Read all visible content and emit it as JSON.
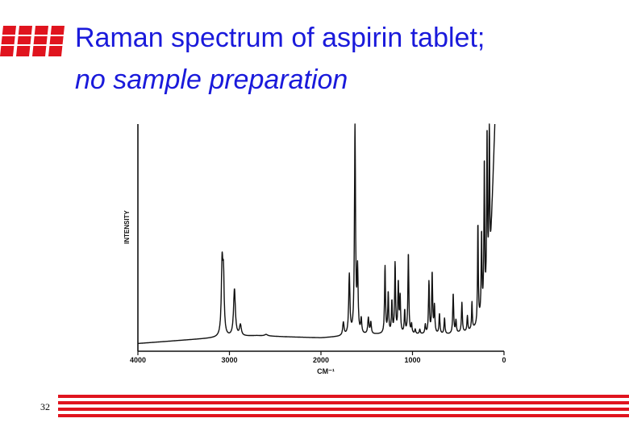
{
  "slide": {
    "title_line1": "Raman spectrum of aspirin tablet;",
    "title_line2": "no sample preparation",
    "page_number": "32",
    "accent_color": "#e0141e",
    "title_color": "#1a1adb"
  },
  "chart_data": {
    "type": "line",
    "title": "",
    "xlabel": "CM⁻¹",
    "ylabel": "INTENSITY",
    "xlim": [
      4000,
      0
    ],
    "ylim": [
      0,
      100
    ],
    "x_ticks": [
      {
        "value": 4000,
        "label": "4000"
      },
      {
        "value": 3000,
        "label": "3000"
      },
      {
        "value": 2000,
        "label": "2000"
      },
      {
        "value": 1000,
        "label": "1000"
      },
      {
        "value": 0,
        "label": "0"
      }
    ],
    "grid": false,
    "baseline": [
      [
        4000,
        2
      ],
      [
        3500,
        3.5
      ],
      [
        3150,
        4.5
      ],
      [
        2700,
        5.5
      ],
      [
        2400,
        5
      ],
      [
        2000,
        4.5
      ],
      [
        1800,
        5
      ],
      [
        1400,
        6
      ],
      [
        900,
        6
      ],
      [
        600,
        6
      ],
      [
        400,
        7
      ],
      [
        300,
        9
      ],
      [
        200,
        18
      ],
      [
        150,
        40
      ],
      [
        100,
        100
      ]
    ],
    "peaks": [
      {
        "x": 3080,
        "y": 36,
        "w": 10
      },
      {
        "x": 3065,
        "y": 29,
        "w": 9
      },
      {
        "x": 2945,
        "y": 26,
        "w": 12
      },
      {
        "x": 2880,
        "y": 10,
        "w": 12
      },
      {
        "x": 2600,
        "y": 6,
        "w": 20
      },
      {
        "x": 1755,
        "y": 11,
        "w": 9
      },
      {
        "x": 1690,
        "y": 32,
        "w": 8
      },
      {
        "x": 1628,
        "y": 98,
        "w": 7
      },
      {
        "x": 1600,
        "y": 33,
        "w": 7
      },
      {
        "x": 1560,
        "y": 12,
        "w": 7
      },
      {
        "x": 1482,
        "y": 13,
        "w": 8
      },
      {
        "x": 1455,
        "y": 11,
        "w": 7
      },
      {
        "x": 1300,
        "y": 36,
        "w": 6
      },
      {
        "x": 1265,
        "y": 24,
        "w": 6
      },
      {
        "x": 1225,
        "y": 20,
        "w": 6
      },
      {
        "x": 1190,
        "y": 37,
        "w": 6
      },
      {
        "x": 1155,
        "y": 28,
        "w": 6
      },
      {
        "x": 1135,
        "y": 22,
        "w": 6
      },
      {
        "x": 1085,
        "y": 16,
        "w": 6
      },
      {
        "x": 1045,
        "y": 42,
        "w": 6
      },
      {
        "x": 1010,
        "y": 10,
        "w": 6
      },
      {
        "x": 970,
        "y": 8,
        "w": 6
      },
      {
        "x": 920,
        "y": 8,
        "w": 6
      },
      {
        "x": 860,
        "y": 10,
        "w": 6
      },
      {
        "x": 820,
        "y": 29,
        "w": 6
      },
      {
        "x": 785,
        "y": 33,
        "w": 6
      },
      {
        "x": 760,
        "y": 18,
        "w": 6
      },
      {
        "x": 705,
        "y": 15,
        "w": 6
      },
      {
        "x": 650,
        "y": 13,
        "w": 6
      },
      {
        "x": 555,
        "y": 24,
        "w": 6
      },
      {
        "x": 525,
        "y": 12,
        "w": 6
      },
      {
        "x": 460,
        "y": 20,
        "w": 6
      },
      {
        "x": 400,
        "y": 14,
        "w": 6
      },
      {
        "x": 350,
        "y": 20,
        "w": 5
      },
      {
        "x": 285,
        "y": 55,
        "w": 5
      },
      {
        "x": 245,
        "y": 50,
        "w": 5
      },
      {
        "x": 215,
        "y": 82,
        "w": 5
      },
      {
        "x": 185,
        "y": 95,
        "w": 5
      },
      {
        "x": 160,
        "y": 100,
        "w": 5
      }
    ]
  }
}
